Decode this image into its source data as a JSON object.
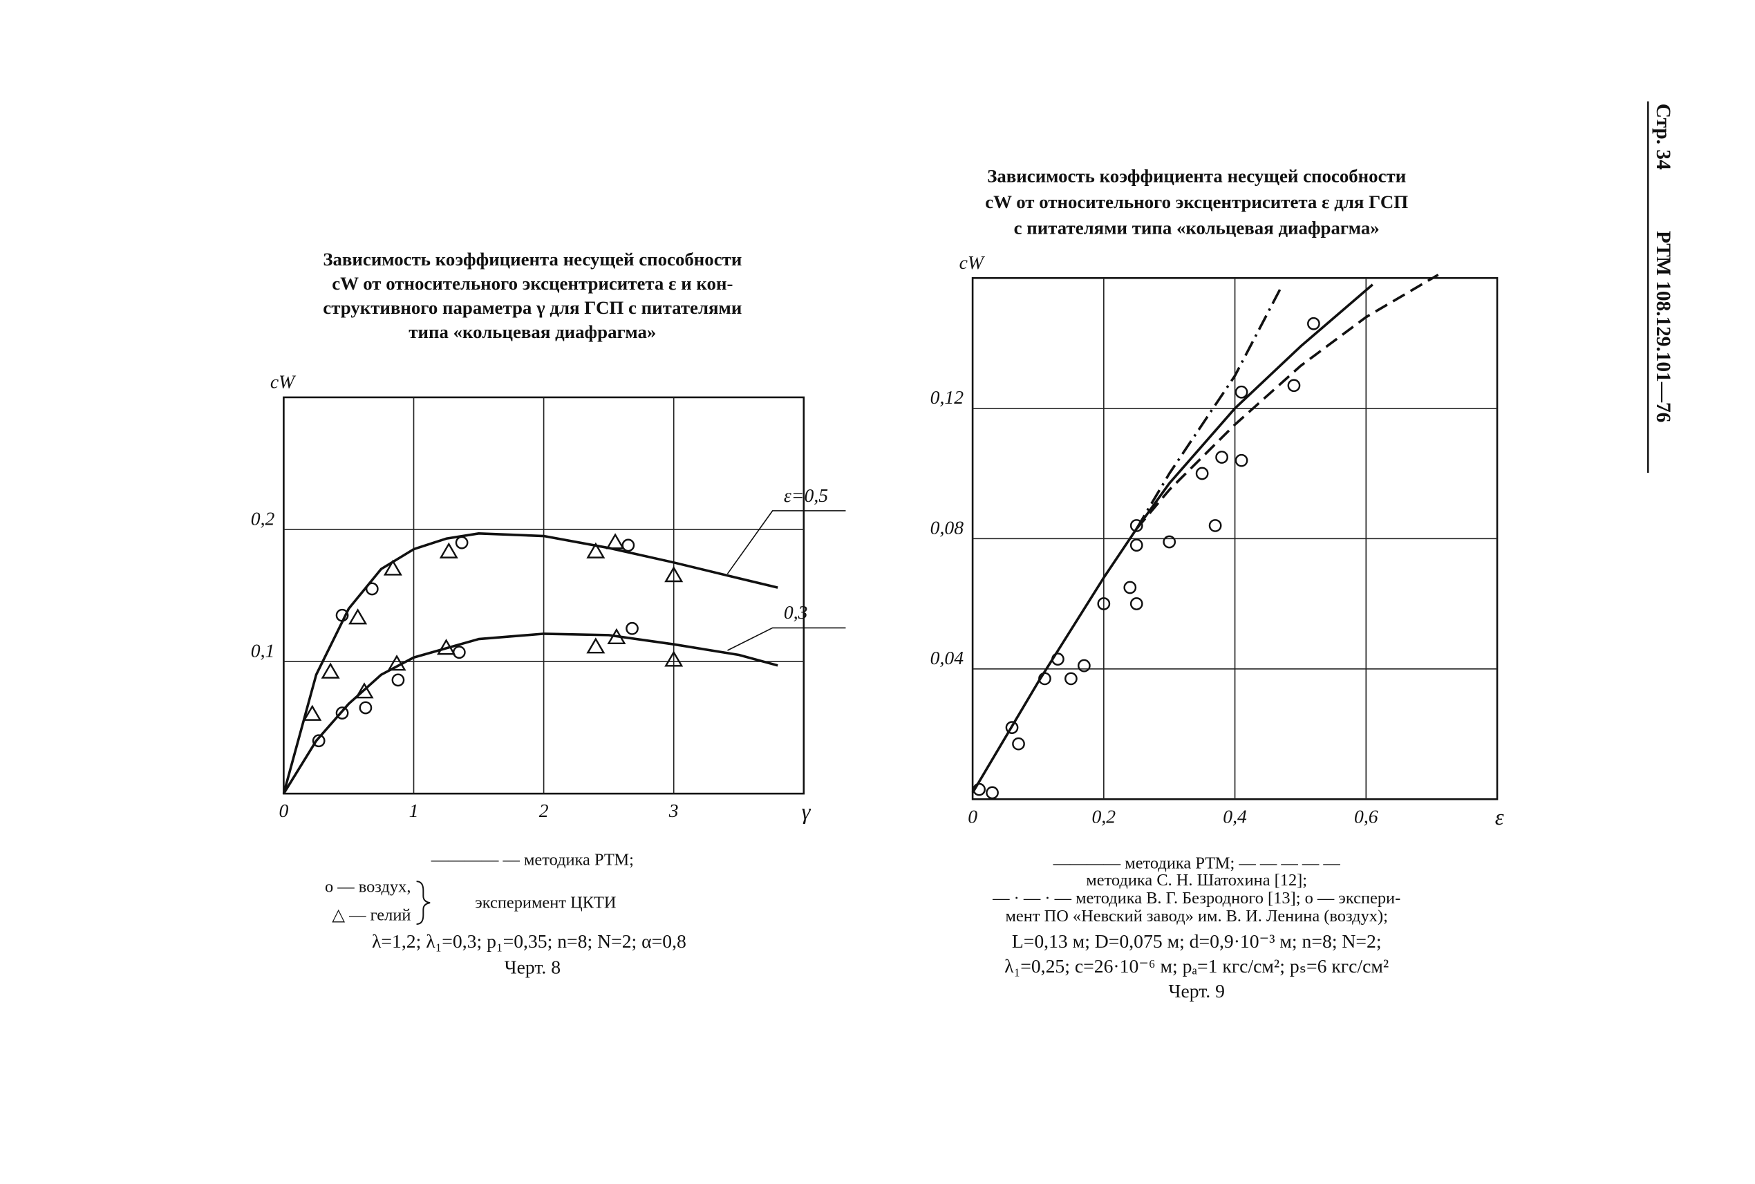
{
  "header": {
    "page": "Стр. 34",
    "code": "РТМ 108.129.101—76"
  },
  "chart_data": [
    {
      "type": "line",
      "title": [
        "Зависимость коэффициента несущей способности",
        "cW от относительного эксцентриситета ε и кон-",
        "структивного параметра γ для ГСП с питателями",
        "типа «кольцевая диафрагма»"
      ],
      "x_label": "γ",
      "y_label": "cW",
      "xlim": [
        0,
        4
      ],
      "ylim": [
        0,
        0.3
      ],
      "xticks": [
        0,
        1,
        2,
        3
      ],
      "yticks": [
        {
          "value": 0.1,
          "label": "0,1"
        },
        {
          "value": 0.2,
          "label": "0,2"
        }
      ],
      "grid": true,
      "series": [
        {
          "label": "ε=0,5",
          "style": "solid",
          "color": "#111111",
          "x": [
            0,
            0.25,
            0.5,
            0.75,
            1,
            1.25,
            1.5,
            2,
            2.5,
            3,
            3.5,
            3.8
          ],
          "values": [
            0,
            0.09,
            0.14,
            0.17,
            0.185,
            0.193,
            0.197,
            0.195,
            0.186,
            0.175,
            0.163,
            0.156
          ]
        },
        {
          "label": "0,3",
          "style": "solid",
          "color": "#111111",
          "x": [
            0,
            0.25,
            0.5,
            0.75,
            1,
            1.5,
            2,
            2.5,
            3,
            3.5,
            3.8
          ],
          "values": [
            0,
            0.04,
            0.068,
            0.09,
            0.103,
            0.117,
            0.121,
            0.12,
            0.113,
            0.105,
            0.097
          ]
        }
      ],
      "points": [
        {
          "marker": "circle",
          "color": "#111111",
          "x": [
            0.27,
            0.45,
            0.45,
            0.68,
            0.63,
            0.88,
            1.37,
            1.35,
            2.65,
            2.68
          ],
          "y": [
            0.04,
            0.135,
            0.061,
            0.155,
            0.065,
            0.086,
            0.19,
            0.107,
            0.188,
            0.125
          ]
        },
        {
          "marker": "triangle",
          "color": "#111111",
          "x": [
            0.22,
            0.36,
            0.57,
            0.62,
            0.84,
            0.87,
            1.27,
            1.25,
            2.4,
            2.4,
            2.55,
            2.56,
            3.0,
            3.0
          ],
          "y": [
            0.06,
            0.092,
            0.133,
            0.077,
            0.17,
            0.098,
            0.183,
            0.11,
            0.183,
            0.111,
            0.19,
            0.118,
            0.165,
            0.101
          ]
        }
      ],
      "notes": {
        "method": "———— — методика РТМ;",
        "air": "о — воздух,",
        "helium": "△ — гелий",
        "experiment": "эксперимент ЦКТИ",
        "params": "λ=1,2;  λ₁=0,3;  p₁=0,35;  n=8;  N=2;  α=0,8"
      },
      "caption": "Черт. 8"
    },
    {
      "type": "line",
      "title": [
        "Зависимость коэффициента несущей способности",
        "cW от относительного эксцентриситета ε для ГСП",
        "с питателями типа «кольцевая диафрагма»"
      ],
      "x_label": "ε",
      "y_label": "cW",
      "xlim": [
        0,
        0.8
      ],
      "ylim": [
        0,
        0.16
      ],
      "xticks": [
        0,
        {
          "value": 0.2,
          "label": "0,2"
        },
        {
          "value": 0.4,
          "label": "0,4"
        },
        {
          "value": 0.6,
          "label": "0,6"
        }
      ],
      "yticks": [
        {
          "value": 0.04,
          "label": "0,04"
        },
        {
          "value": 0.08,
          "label": "0,08"
        },
        {
          "value": 0.12,
          "label": "0,12"
        }
      ],
      "grid": true,
      "series": [
        {
          "style": "solid",
          "color": "#111111",
          "x": [
            0,
            0.1,
            0.2,
            0.25,
            0.3,
            0.4,
            0.5,
            0.61
          ],
          "values": [
            0.002,
            0.036,
            0.068,
            0.083,
            0.097,
            0.12,
            0.139,
            0.158
          ]
        },
        {
          "style": "dashed",
          "color": "#111111",
          "x": [
            0.25,
            0.3,
            0.4,
            0.5,
            0.6,
            0.71
          ],
          "values": [
            0.083,
            0.095,
            0.115,
            0.133,
            0.148,
            0.161
          ]
        },
        {
          "style": "dashdot",
          "color": "#111111",
          "x": [
            0.25,
            0.3,
            0.4,
            0.47
          ],
          "values": [
            0.083,
            0.1,
            0.13,
            0.157
          ]
        }
      ],
      "points": [
        {
          "marker": "circle",
          "color": "#111111",
          "x": [
            0.01,
            0.03,
            0.06,
            0.07,
            0.11,
            0.13,
            0.15,
            0.17,
            0.2,
            0.24,
            0.25,
            0.25,
            0.25,
            0.3,
            0.35,
            0.37,
            0.38,
            0.41,
            0.41,
            0.49,
            0.52
          ],
          "y": [
            0.003,
            0.002,
            0.022,
            0.017,
            0.037,
            0.043,
            0.037,
            0.041,
            0.06,
            0.065,
            0.06,
            0.084,
            0.078,
            0.079,
            0.1,
            0.084,
            0.105,
            0.125,
            0.104,
            0.127,
            0.146
          ]
        }
      ],
      "notes": [
        "———— методика РТМ;  — — — — —",
        "методика С. Н. Шатохина [12];",
        "— · — · — методика В. Г. Безродного [13]; о — экспери-",
        "мент ПО «Невский завод» им. В. И. Ленина (воздух);",
        "L=0,13 м;  D=0,075 м;  d=0,9·10⁻³ м;  n=8;  N=2;",
        "λ₁=0,25;  c=26·10⁻⁶ м;  pₐ=1 кгс/см²;  pₛ=6 кгс/см²"
      ],
      "caption": "Черт. 9"
    }
  ]
}
